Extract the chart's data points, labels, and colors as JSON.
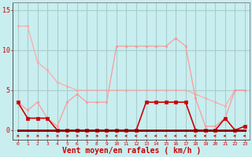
{
  "background_color": "#c8eef0",
  "grid_color": "#aacccc",
  "xlabel": "Vent moyen/en rafales ( km/h )",
  "xlabel_color": "#cc0000",
  "xlabel_fontsize": 7,
  "xtick_labels": [
    "0",
    "1",
    "2",
    "3",
    "4",
    "5",
    "6",
    "7",
    "8",
    "9",
    "10",
    "11",
    "12",
    "13",
    "14",
    "15",
    "16",
    "17",
    "18",
    "19",
    "20",
    "21",
    "22",
    "23"
  ],
  "ytick_vals": [
    0,
    5,
    10,
    15
  ],
  "ylim": [
    -1.2,
    16.0
  ],
  "xlim": [
    -0.5,
    23.5
  ],
  "line_pink": {
    "x": [
      0,
      1,
      2,
      3,
      4,
      5,
      6,
      7,
      8,
      9,
      10,
      11,
      12,
      13,
      14,
      15,
      16,
      17,
      18,
      19,
      20,
      21,
      22,
      23
    ],
    "y": [
      13.0,
      13.0,
      8.5,
      7.5,
      6.0,
      5.5,
      5.0,
      5.0,
      5.0,
      5.0,
      5.0,
      5.0,
      5.0,
      5.0,
      5.0,
      5.0,
      5.0,
      5.0,
      4.5,
      4.0,
      3.5,
      3.0,
      5.0,
      5.0
    ],
    "color": "#ffaaaa",
    "lw": 0.9,
    "marker": "o",
    "ms": 1.8
  },
  "line_lightpink": {
    "x": [
      0,
      1,
      2,
      3,
      4,
      5,
      6,
      7,
      8,
      9,
      10,
      11,
      12,
      13,
      14,
      15,
      16,
      17,
      18,
      19,
      20,
      21,
      22,
      23
    ],
    "y": [
      3.5,
      2.5,
      3.5,
      1.5,
      0.5,
      3.5,
      4.5,
      3.5,
      3.5,
      3.5,
      10.5,
      10.5,
      10.5,
      10.5,
      10.5,
      10.5,
      11.5,
      10.5,
      4.0,
      0.5,
      0.5,
      1.5,
      5.0,
      5.0
    ],
    "color": "#ff9999",
    "lw": 0.9,
    "marker": "o",
    "ms": 1.8
  },
  "line_red": {
    "x": [
      0,
      1,
      2,
      3,
      4,
      5,
      6,
      7,
      8,
      9,
      10,
      11,
      12,
      13,
      14,
      15,
      16,
      17,
      18,
      19,
      20,
      21,
      22,
      23
    ],
    "y": [
      3.5,
      1.5,
      1.5,
      1.5,
      0.0,
      0.0,
      0.0,
      0.0,
      0.0,
      0.0,
      0.0,
      0.0,
      0.0,
      3.5,
      3.5,
      3.5,
      3.5,
      3.5,
      0.0,
      0.0,
      0.0,
      1.5,
      0.0,
      0.5
    ],
    "color": "#cc0000",
    "lw": 1.2,
    "marker": "s",
    "ms": 2.2
  },
  "line_darkred": {
    "x": [
      0,
      1,
      2,
      3,
      4,
      5,
      6,
      7,
      8,
      9,
      10,
      11,
      12,
      13,
      14,
      15,
      16,
      17,
      18,
      19,
      20,
      21,
      22,
      23
    ],
    "y": [
      0.0,
      0.0,
      0.0,
      0.0,
      0.0,
      0.0,
      0.0,
      0.0,
      0.0,
      0.0,
      0.0,
      0.0,
      0.0,
      0.0,
      0.0,
      0.0,
      0.0,
      0.0,
      0.0,
      0.0,
      0.0,
      0.0,
      0.0,
      0.0
    ],
    "color": "#880000",
    "lw": 2.0,
    "marker": "s",
    "ms": 2.0
  },
  "arrows": {
    "x": [
      0,
      1,
      2,
      3,
      4,
      5,
      6,
      7,
      8,
      9,
      10,
      11,
      12,
      13,
      14,
      15,
      16,
      17,
      18,
      19,
      20,
      21,
      22,
      23
    ],
    "directions": [
      1,
      1,
      1,
      1,
      1,
      1,
      1,
      1,
      1,
      1,
      -1,
      -1,
      -1,
      -1,
      -1,
      -1,
      -1,
      -1,
      -1,
      -1,
      -1,
      -1,
      -1,
      -1
    ],
    "color": "#cc0000"
  }
}
